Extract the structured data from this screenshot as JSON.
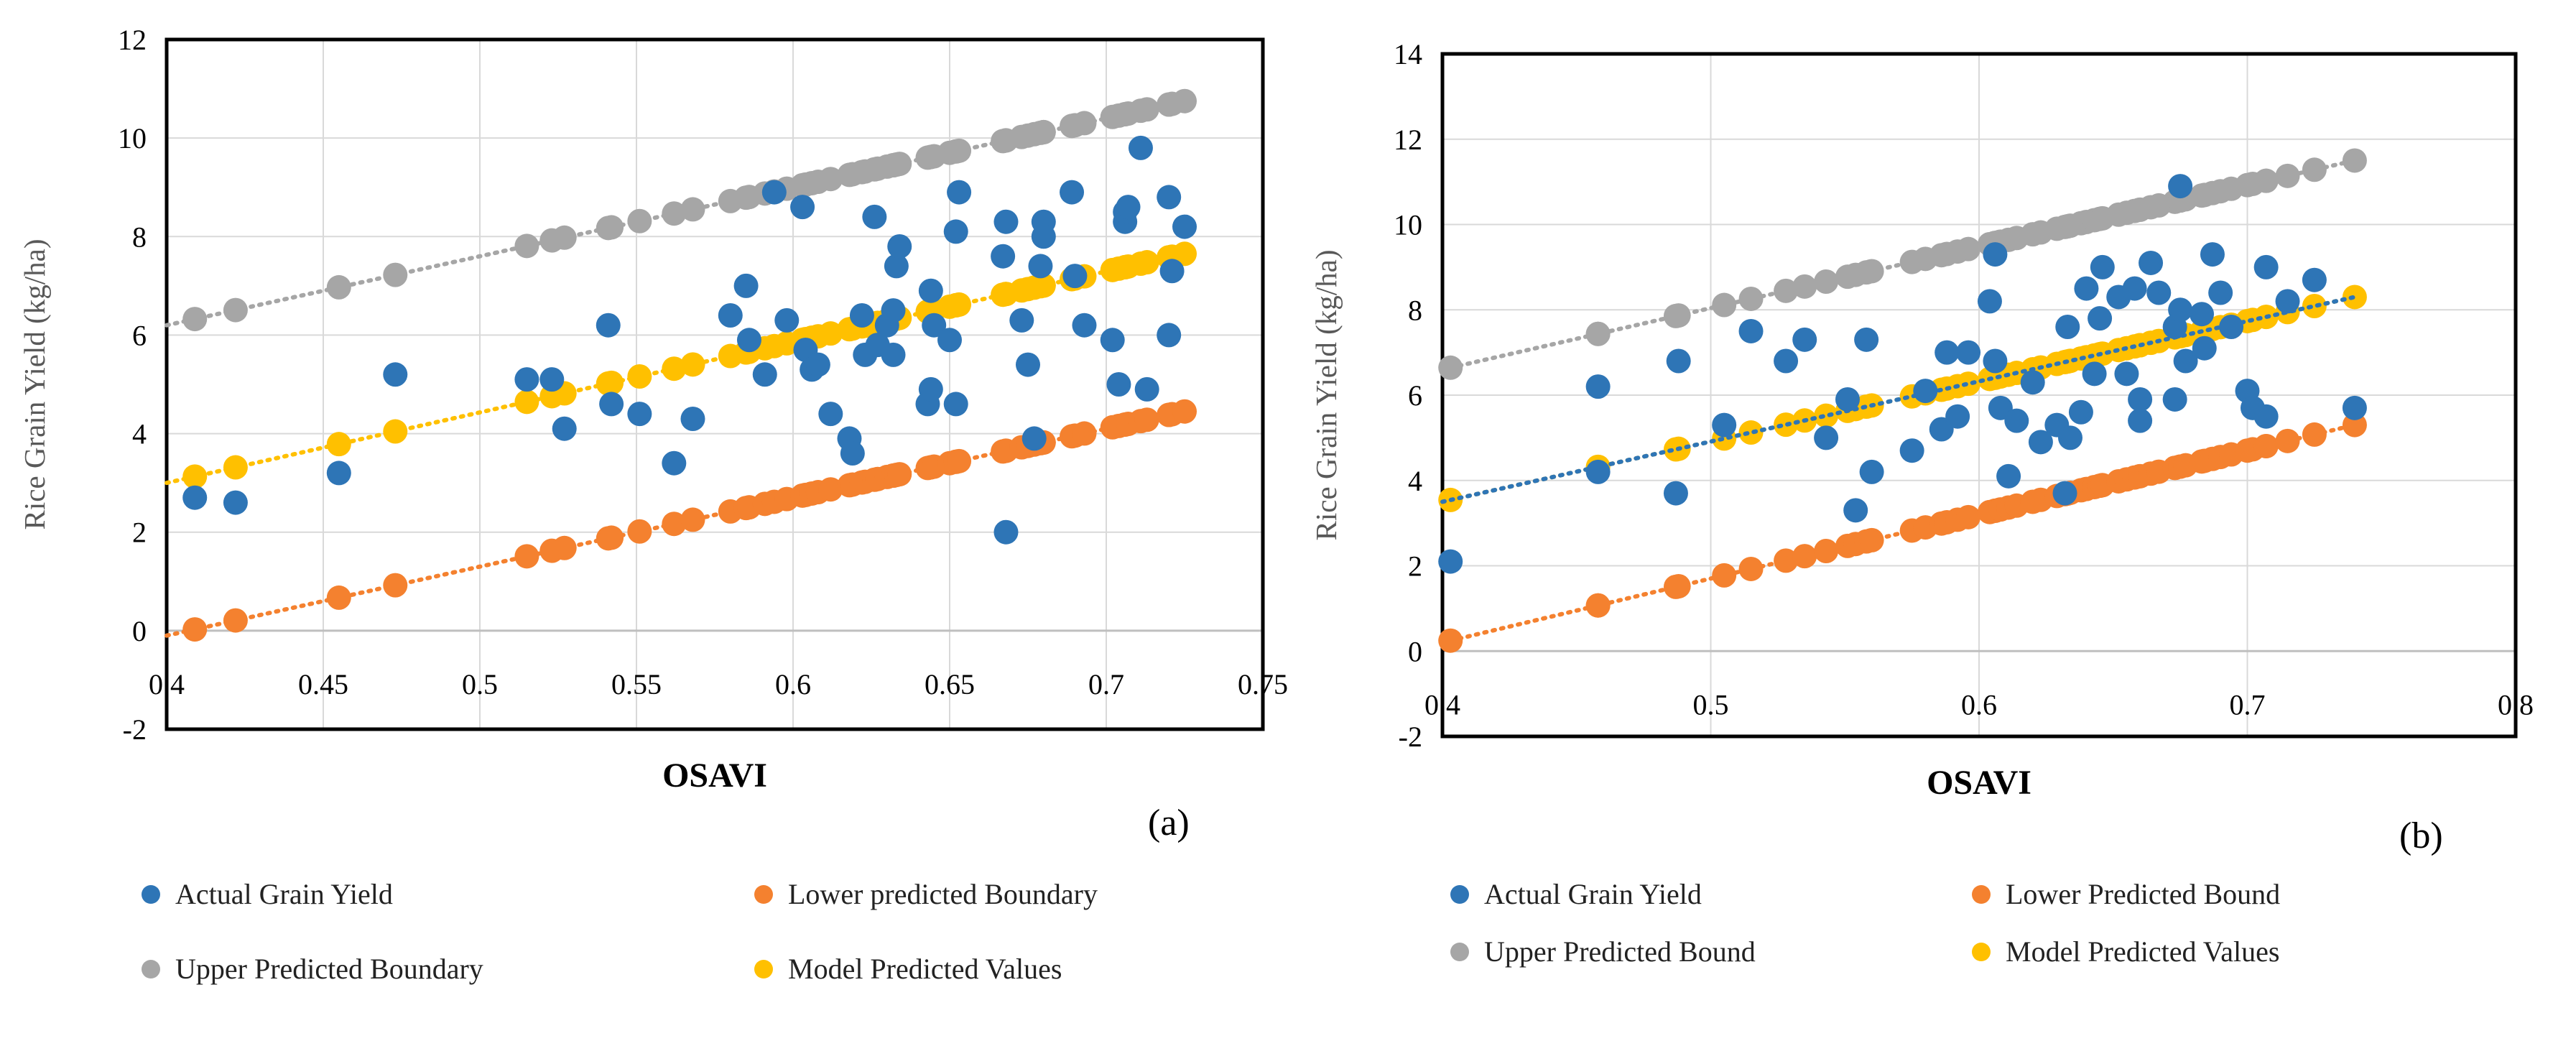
{
  "chart_data": [
    {
      "type": "scatter",
      "panel_label": "(a)",
      "xlabel": "OSAVI",
      "ylabel": "Rice Grain Yield (kg/ha)",
      "xlim": [
        0.4,
        0.75
      ],
      "ylim": [
        -2,
        12
      ],
      "x_ticks": [
        "0.4",
        "0.45",
        "0.5",
        "0.55",
        "0.6",
        "0.65",
        "0.7",
        "0.75"
      ],
      "y_ticks": [
        "-2",
        "0",
        "2",
        "4",
        "6",
        "8",
        "10",
        "12"
      ],
      "gridlines": true,
      "legend_labels": [
        "Actual Grain Yield",
        "Lower predicted Boundary",
        "Upper Predicted Boundary",
        "Model Predicted Values"
      ],
      "series": [
        {
          "name": "Actual Grain Yield",
          "color": "#2E75B6",
          "points": [
            [
              0.409,
              2.7
            ],
            [
              0.422,
              2.6
            ],
            [
              0.455,
              3.2
            ],
            [
              0.473,
              5.2
            ],
            [
              0.515,
              5.1
            ],
            [
              0.523,
              5.1
            ],
            [
              0.527,
              4.1
            ],
            [
              0.541,
              6.2
            ],
            [
              0.542,
              4.6
            ],
            [
              0.551,
              4.4
            ],
            [
              0.562,
              3.4
            ],
            [
              0.568,
              4.3
            ],
            [
              0.58,
              6.4
            ],
            [
              0.585,
              7.0
            ],
            [
              0.586,
              5.9
            ],
            [
              0.591,
              5.2
            ],
            [
              0.594,
              8.9
            ],
            [
              0.598,
              6.3
            ],
            [
              0.603,
              8.6
            ],
            [
              0.604,
              5.7
            ],
            [
              0.606,
              5.3
            ],
            [
              0.608,
              5.4
            ],
            [
              0.612,
              4.4
            ],
            [
              0.618,
              3.9
            ],
            [
              0.619,
              3.6
            ],
            [
              0.622,
              6.4
            ],
            [
              0.623,
              5.6
            ],
            [
              0.626,
              8.4
            ],
            [
              0.627,
              5.8
            ],
            [
              0.63,
              6.2
            ],
            [
              0.632,
              5.6
            ],
            [
              0.632,
              6.5
            ],
            [
              0.633,
              7.4
            ],
            [
              0.634,
              7.8
            ],
            [
              0.643,
              4.6
            ],
            [
              0.644,
              4.9
            ],
            [
              0.644,
              6.9
            ],
            [
              0.645,
              6.2
            ],
            [
              0.65,
              5.9
            ],
            [
              0.652,
              4.6
            ],
            [
              0.652,
              8.1
            ],
            [
              0.653,
              8.9
            ],
            [
              0.667,
              7.6
            ],
            [
              0.668,
              2.0
            ],
            [
              0.668,
              8.3
            ],
            [
              0.673,
              6.3
            ],
            [
              0.675,
              5.4
            ],
            [
              0.677,
              3.9
            ],
            [
              0.679,
              7.4
            ],
            [
              0.68,
              8.3
            ],
            [
              0.68,
              8.0
            ],
            [
              0.689,
              8.9
            ],
            [
              0.69,
              7.2
            ],
            [
              0.693,
              6.2
            ],
            [
              0.702,
              5.9
            ],
            [
              0.704,
              5.0
            ],
            [
              0.706,
              8.3
            ],
            [
              0.706,
              8.5
            ],
            [
              0.707,
              8.6
            ],
            [
              0.711,
              9.8
            ],
            [
              0.713,
              4.9
            ],
            [
              0.72,
              6.0
            ],
            [
              0.72,
              8.8
            ],
            [
              0.721,
              7.3
            ],
            [
              0.725,
              8.2
            ]
          ]
        },
        {
          "name": "Lower predicted Boundary",
          "color": "#F4812F",
          "line": [
            [
              0.4,
              -0.1
            ],
            [
              0.725,
              4.45
            ]
          ],
          "x_range": [
            0.409,
            0.726
          ]
        },
        {
          "name": "Upper Predicted Boundary",
          "color": "#A6A6A6",
          "line": [
            [
              0.4,
              6.2
            ],
            [
              0.725,
              10.75
            ]
          ],
          "x_range": [
            0.409,
            0.726
          ]
        },
        {
          "name": "Model Predicted Values",
          "color": "#FFC000",
          "line": [
            [
              0.4,
              3.0
            ],
            [
              0.725,
              7.65
            ]
          ],
          "x_range": [
            0.409,
            0.726
          ]
        }
      ]
    },
    {
      "type": "scatter",
      "panel_label": "(b)",
      "xlabel": "OSAVI",
      "ylabel": "Rice Grain Yield (kg/ha)",
      "xlim": [
        0.4,
        0.8
      ],
      "ylim": [
        -2,
        14
      ],
      "x_ticks": [
        "0.4",
        "0.5",
        "0.6",
        "0.7",
        "0.8"
      ],
      "y_ticks": [
        "-2",
        "0",
        "2",
        "4",
        "6",
        "8",
        "10",
        "12",
        "14"
      ],
      "gridlines": true,
      "legend_labels": [
        "Actual Grain Yield",
        "Lower Predicted Bound",
        "Upper Predicted Bound",
        "Model Predicted Values"
      ],
      "series": [
        {
          "name": "Actual Grain Yield",
          "color": "#2E75B6",
          "trendline": [
            [
              0.4,
              3.5
            ],
            [
              0.74,
              8.3
            ]
          ],
          "points": [
            [
              0.403,
              2.1
            ],
            [
              0.458,
              6.2
            ],
            [
              0.458,
              4.2
            ],
            [
              0.487,
              3.7
            ],
            [
              0.488,
              6.8
            ],
            [
              0.505,
              5.3
            ],
            [
              0.515,
              7.5
            ],
            [
              0.528,
              6.8
            ],
            [
              0.535,
              7.3
            ],
            [
              0.543,
              5.0
            ],
            [
              0.551,
              5.9
            ],
            [
              0.554,
              3.3
            ],
            [
              0.558,
              7.3
            ],
            [
              0.56,
              4.2
            ],
            [
              0.575,
              4.7
            ],
            [
              0.58,
              6.1
            ],
            [
              0.586,
              5.2
            ],
            [
              0.588,
              7.0
            ],
            [
              0.592,
              5.5
            ],
            [
              0.596,
              7.0
            ],
            [
              0.604,
              8.2
            ],
            [
              0.606,
              9.3
            ],
            [
              0.606,
              6.8
            ],
            [
              0.608,
              5.7
            ],
            [
              0.611,
              4.1
            ],
            [
              0.614,
              5.4
            ],
            [
              0.62,
              6.3
            ],
            [
              0.623,
              4.9
            ],
            [
              0.629,
              5.3
            ],
            [
              0.632,
              3.7
            ],
            [
              0.633,
              7.6
            ],
            [
              0.634,
              5.0
            ],
            [
              0.638,
              5.6
            ],
            [
              0.64,
              8.5
            ],
            [
              0.643,
              6.5
            ],
            [
              0.645,
              7.8
            ],
            [
              0.646,
              9.0
            ],
            [
              0.652,
              8.3
            ],
            [
              0.655,
              6.5
            ],
            [
              0.658,
              8.5
            ],
            [
              0.66,
              5.9
            ],
            [
              0.66,
              5.4
            ],
            [
              0.664,
              9.1
            ],
            [
              0.667,
              8.4
            ],
            [
              0.673,
              5.9
            ],
            [
              0.673,
              7.6
            ],
            [
              0.675,
              8.0
            ],
            [
              0.675,
              10.9
            ],
            [
              0.677,
              6.8
            ],
            [
              0.683,
              7.9
            ],
            [
              0.684,
              7.1
            ],
            [
              0.687,
              9.3
            ],
            [
              0.69,
              8.4
            ],
            [
              0.694,
              7.6
            ],
            [
              0.7,
              6.1
            ],
            [
              0.702,
              5.7
            ],
            [
              0.707,
              5.5
            ],
            [
              0.707,
              9.0
            ],
            [
              0.715,
              8.2
            ],
            [
              0.725,
              8.7
            ],
            [
              0.74,
              5.7
            ]
          ]
        },
        {
          "name": "Lower Predicted Bound",
          "color": "#F4812F",
          "line": [
            [
              0.4,
              0.2
            ],
            [
              0.74,
              5.3
            ]
          ],
          "x_range": [
            0.403,
            0.74
          ]
        },
        {
          "name": "Upper Predicted Bound",
          "color": "#A6A6A6",
          "line": [
            [
              0.4,
              6.6
            ],
            [
              0.74,
              11.5
            ]
          ],
          "x_range": [
            0.403,
            0.74
          ]
        },
        {
          "name": "Model Predicted Values",
          "color": "#FFC000",
          "line": [
            [
              0.4,
              3.5
            ],
            [
              0.74,
              8.3
            ]
          ],
          "x_range": [
            0.403,
            0.74
          ]
        }
      ]
    }
  ]
}
